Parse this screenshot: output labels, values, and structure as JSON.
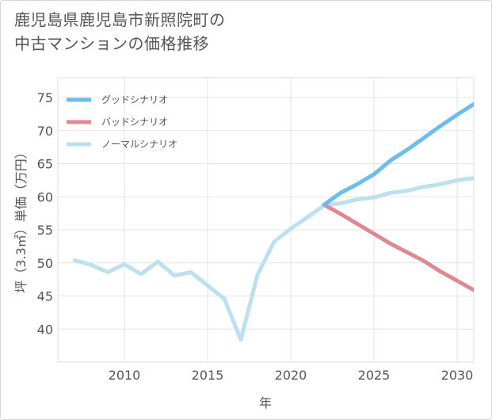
{
  "title": {
    "line1": "鹿児島県鹿児島市新照院町の",
    "line2": "中古マンションの価格推移"
  },
  "chart_data": {
    "type": "line",
    "xlabel": "年",
    "ylabel": "坪（3.3㎡）単価（万円）",
    "xlim": [
      2006,
      2031
    ],
    "ylim": [
      35,
      78
    ],
    "xticks": [
      2010,
      2015,
      2020,
      2025,
      2030
    ],
    "yticks": [
      40,
      45,
      50,
      55,
      60,
      65,
      70,
      75
    ],
    "legend_position": "top-left",
    "grid": true,
    "series": [
      {
        "name": "グッドシナリオ",
        "color": "#6cbcee",
        "x": [
          2022,
          2023,
          2024,
          2025,
          2026,
          2027,
          2028,
          2029,
          2030,
          2031
        ],
        "values": [
          58.8,
          60.6,
          61.9,
          63.4,
          65.5,
          67.1,
          68.9,
          70.7,
          72.4,
          74.0
        ]
      },
      {
        "name": "バッドシナリオ",
        "color": "#e08890",
        "x": [
          2022,
          2023,
          2024,
          2025,
          2026,
          2027,
          2028,
          2029,
          2030,
          2031
        ],
        "values": [
          58.8,
          57.4,
          55.9,
          54.4,
          52.9,
          51.6,
          50.3,
          48.7,
          47.3,
          45.9
        ]
      },
      {
        "name": "ノーマルシナリオ",
        "color": "#bde0f0",
        "x": [
          2007,
          2008,
          2009,
          2010,
          2011,
          2012,
          2013,
          2014,
          2015,
          2016,
          2017,
          2018,
          2019,
          2020,
          2021,
          2022,
          2023,
          2024,
          2025,
          2026,
          2027,
          2028,
          2029,
          2030,
          2031
        ],
        "values": [
          50.4,
          49.7,
          48.6,
          49.8,
          48.3,
          50.2,
          48.1,
          48.6,
          46.6,
          44.6,
          38.4,
          48.2,
          53.2,
          55.2,
          56.9,
          58.7,
          59.0,
          59.6,
          59.9,
          60.6,
          60.9,
          61.5,
          61.9,
          62.5,
          62.8
        ]
      }
    ]
  }
}
